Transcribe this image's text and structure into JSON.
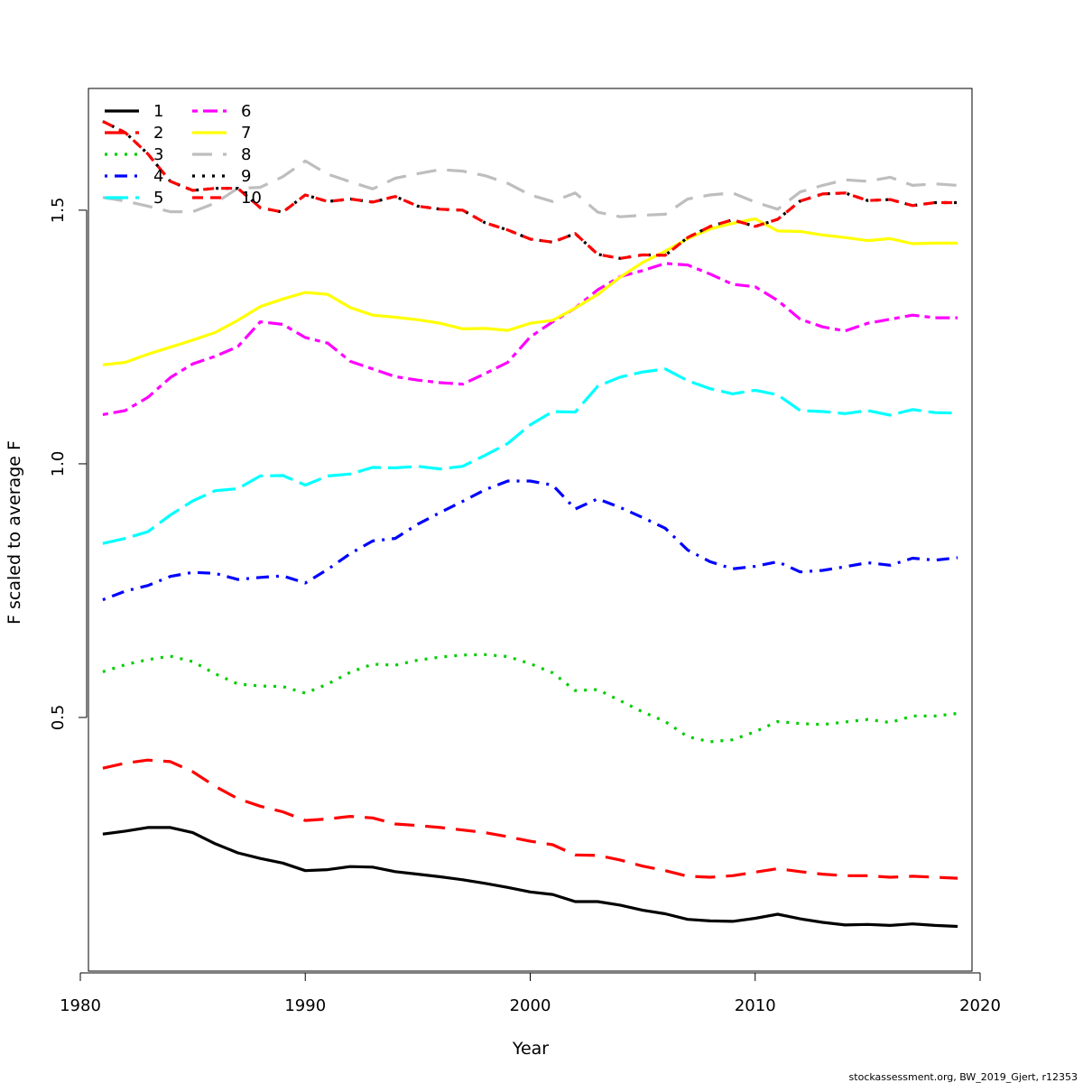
{
  "chart_data": {
    "type": "line",
    "title": "",
    "xlabel": "Year",
    "ylabel": "F scaled to average F",
    "xlim": [
      1980,
      2020
    ],
    "ylim": [
      0.0,
      1.74
    ],
    "x_ticks": [
      1980,
      1990,
      2000,
      2010,
      2020
    ],
    "y_ticks": [
      0.5,
      1.0,
      1.5
    ],
    "y_tick_labels": [
      "0.5",
      "1.0",
      "1.5"
    ],
    "grid": false,
    "legend_position": "top-left",
    "x": [
      1981,
      1982,
      1983,
      1984,
      1985,
      1986,
      1987,
      1988,
      1989,
      1990,
      1991,
      1992,
      1993,
      1994,
      1995,
      1996,
      1997,
      1998,
      1999,
      2000,
      2001,
      2002,
      2003,
      2004,
      2005,
      2006,
      2007,
      2008,
      2009,
      2010,
      2011,
      2012,
      2013,
      2014,
      2015,
      2016,
      2017,
      2018,
      2019
    ],
    "series": [
      {
        "name": "1",
        "color": "#000000",
        "dash": "solid",
        "values": [
          0.27,
          0.276,
          0.283,
          0.283,
          0.273,
          0.251,
          0.233,
          0.222,
          0.213,
          0.198,
          0.2,
          0.206,
          0.205,
          0.196,
          0.191,
          0.186,
          0.18,
          0.173,
          0.165,
          0.156,
          0.151,
          0.137,
          0.137,
          0.13,
          0.12,
          0.113,
          0.102,
          0.099,
          0.098,
          0.104,
          0.112,
          0.103,
          0.096,
          0.091,
          0.092,
          0.09,
          0.093,
          0.09,
          0.088
        ]
      },
      {
        "name": "2",
        "color": "#ff0000",
        "dash": "long",
        "values": [
          0.4,
          0.41,
          0.416,
          0.413,
          0.393,
          0.364,
          0.34,
          0.325,
          0.314,
          0.297,
          0.3,
          0.305,
          0.302,
          0.29,
          0.287,
          0.283,
          0.278,
          0.273,
          0.265,
          0.256,
          0.249,
          0.229,
          0.228,
          0.219,
          0.207,
          0.198,
          0.187,
          0.185,
          0.188,
          0.195,
          0.202,
          0.196,
          0.191,
          0.188,
          0.188,
          0.185,
          0.187,
          0.185,
          0.183
        ]
      },
      {
        "name": "3",
        "color": "#00cd00",
        "dash": "dot",
        "values": [
          0.59,
          0.604,
          0.614,
          0.621,
          0.61,
          0.586,
          0.566,
          0.562,
          0.561,
          0.548,
          0.566,
          0.589,
          0.605,
          0.603,
          0.613,
          0.619,
          0.623,
          0.624,
          0.62,
          0.606,
          0.588,
          0.553,
          0.555,
          0.533,
          0.511,
          0.492,
          0.462,
          0.452,
          0.456,
          0.472,
          0.492,
          0.488,
          0.486,
          0.491,
          0.496,
          0.49,
          0.503,
          0.503,
          0.508
        ]
      },
      {
        "name": "4",
        "color": "#0000ff",
        "dash": "dotdash",
        "values": [
          0.732,
          0.749,
          0.76,
          0.778,
          0.786,
          0.784,
          0.772,
          0.776,
          0.779,
          0.765,
          0.792,
          0.823,
          0.848,
          0.853,
          0.881,
          0.904,
          0.926,
          0.949,
          0.966,
          0.966,
          0.958,
          0.911,
          0.931,
          0.914,
          0.894,
          0.873,
          0.83,
          0.807,
          0.793,
          0.798,
          0.807,
          0.787,
          0.79,
          0.797,
          0.805,
          0.8,
          0.814,
          0.81,
          0.815
        ]
      },
      {
        "name": "5",
        "color": "#00ffff",
        "dash": "longdash",
        "values": [
          0.843,
          0.853,
          0.866,
          0.899,
          0.927,
          0.947,
          0.951,
          0.976,
          0.977,
          0.958,
          0.976,
          0.98,
          0.993,
          0.992,
          0.995,
          0.99,
          0.995,
          1.017,
          1.04,
          1.077,
          1.103,
          1.102,
          1.153,
          1.171,
          1.181,
          1.187,
          1.164,
          1.148,
          1.138,
          1.145,
          1.136,
          1.105,
          1.103,
          1.099,
          1.105,
          1.096,
          1.107,
          1.101,
          1.1
        ]
      },
      {
        "name": "6",
        "color": "#ff00ff",
        "dash": "twodash",
        "values": [
          1.097,
          1.105,
          1.131,
          1.17,
          1.197,
          1.212,
          1.231,
          1.28,
          1.275,
          1.249,
          1.238,
          1.202,
          1.187,
          1.172,
          1.165,
          1.16,
          1.157,
          1.178,
          1.2,
          1.25,
          1.28,
          1.307,
          1.343,
          1.369,
          1.381,
          1.395,
          1.392,
          1.374,
          1.354,
          1.349,
          1.322,
          1.285,
          1.27,
          1.262,
          1.277,
          1.285,
          1.293,
          1.288,
          1.288
        ]
      },
      {
        "name": "7",
        "color": "#ffff00",
        "dash": "solid",
        "values": [
          1.195,
          1.2,
          1.216,
          1.23,
          1.244,
          1.259,
          1.283,
          1.31,
          1.325,
          1.338,
          1.334,
          1.308,
          1.293,
          1.289,
          1.284,
          1.277,
          1.266,
          1.267,
          1.263,
          1.277,
          1.283,
          1.307,
          1.334,
          1.368,
          1.397,
          1.419,
          1.444,
          1.463,
          1.474,
          1.483,
          1.459,
          1.458,
          1.451,
          1.446,
          1.44,
          1.444,
          1.434,
          1.435,
          1.435
        ]
      },
      {
        "name": "8",
        "color": "#bebebe",
        "dash": "long",
        "values": [
          1.525,
          1.518,
          1.508,
          1.497,
          1.497,
          1.514,
          1.543,
          1.545,
          1.566,
          1.597,
          1.571,
          1.556,
          1.542,
          1.563,
          1.572,
          1.58,
          1.577,
          1.568,
          1.553,
          1.53,
          1.517,
          1.534,
          1.496,
          1.487,
          1.49,
          1.492,
          1.522,
          1.53,
          1.534,
          1.516,
          1.502,
          1.536,
          1.549,
          1.56,
          1.557,
          1.565,
          1.549,
          1.552,
          1.549
        ]
      },
      {
        "name": "9",
        "color": "#000000",
        "dash": "dot",
        "values": [
          1.675,
          1.653,
          1.611,
          1.557,
          1.539,
          1.543,
          1.543,
          1.505,
          1.496,
          1.53,
          1.517,
          1.522,
          1.516,
          1.527,
          1.508,
          1.502,
          1.5,
          1.475,
          1.461,
          1.443,
          1.437,
          1.454,
          1.413,
          1.405,
          1.412,
          1.411,
          1.446,
          1.468,
          1.481,
          1.468,
          1.482,
          1.518,
          1.532,
          1.534,
          1.519,
          1.521,
          1.509,
          1.515,
          1.515
        ]
      },
      {
        "name": "10",
        "color": "#ff0000",
        "dash": "dash",
        "values": [
          1.675,
          1.653,
          1.611,
          1.557,
          1.539,
          1.543,
          1.543,
          1.505,
          1.496,
          1.53,
          1.517,
          1.522,
          1.516,
          1.527,
          1.508,
          1.502,
          1.5,
          1.475,
          1.461,
          1.443,
          1.437,
          1.454,
          1.413,
          1.405,
          1.412,
          1.411,
          1.446,
          1.468,
          1.481,
          1.468,
          1.482,
          1.518,
          1.532,
          1.534,
          1.519,
          1.521,
          1.509,
          1.515,
          1.515
        ]
      }
    ]
  },
  "footer": "stockassessment.org, BW_2019_Gjert, r12353"
}
